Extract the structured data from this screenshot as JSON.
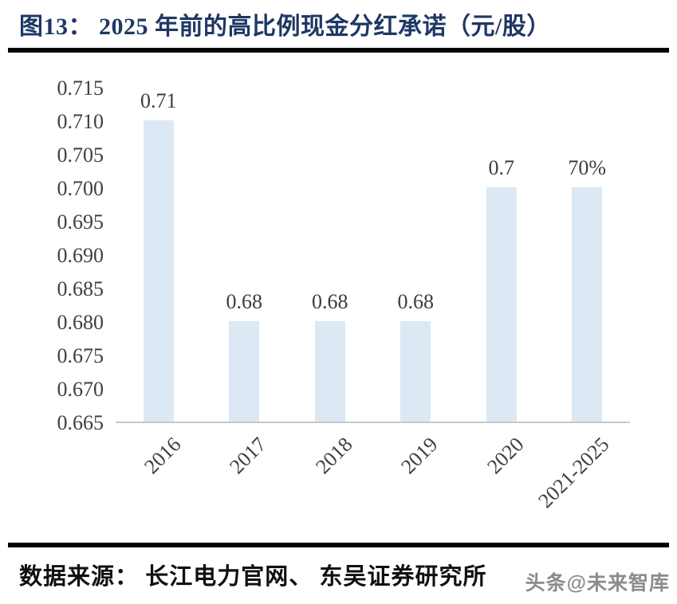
{
  "header": {
    "title": "图13：  2025 年前的高比例现金分红承诺（元/股）"
  },
  "chart_data": {
    "type": "bar",
    "title": "2025 年前的高比例现金分红承诺（元/股）",
    "categories": [
      "2016",
      "2017",
      "2018",
      "2019",
      "2020",
      "2021-2025"
    ],
    "values": [
      0.71,
      0.68,
      0.68,
      0.68,
      0.7,
      0.7
    ],
    "bar_labels": [
      "0.71",
      "0.68",
      "0.68",
      "0.68",
      "0.7",
      "70%"
    ],
    "y_ticks": [
      "0.715",
      "0.710",
      "0.705",
      "0.700",
      "0.695",
      "0.690",
      "0.685",
      "0.680",
      "0.675",
      "0.670",
      "0.665"
    ],
    "ylim": [
      0.665,
      0.715
    ],
    "xlabel": "",
    "ylabel": "",
    "grid": false,
    "legend": "none",
    "bar_color": "#DCE9F5",
    "axis_line_color": "#C8C8C8",
    "tick_label_color": "#404040",
    "title_color": "#1F3864"
  },
  "footer": {
    "source": "数据来源： 长江电力官网、 东吴证券研究所",
    "watermark": "头条@未来智库"
  }
}
